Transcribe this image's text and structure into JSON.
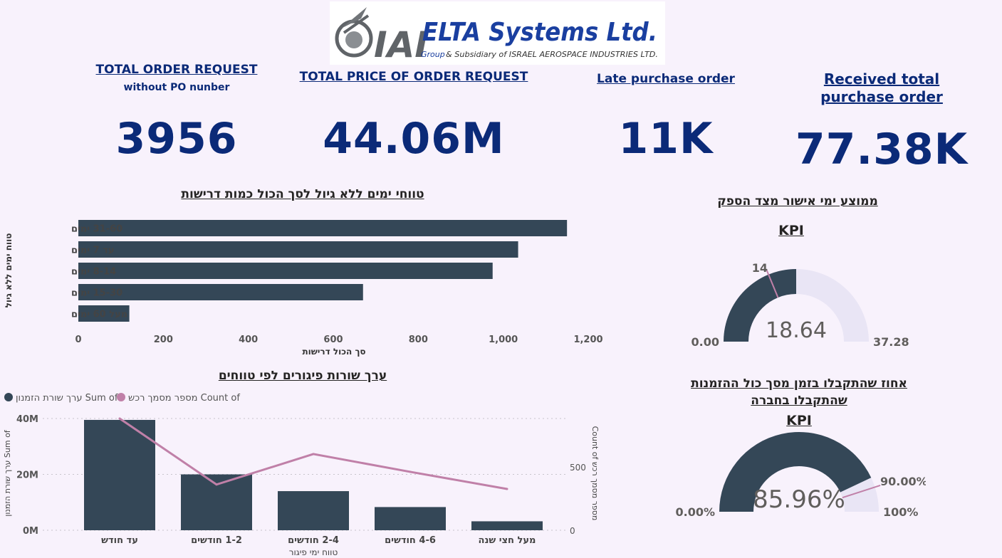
{
  "logo": {
    "brand": "IAI",
    "company": "ELTA Systems Ltd.",
    "tagline_group": "Group",
    "tagline_rest": "& Subsidiary of ISRAEL AEROSPACE INDUSTRIES LTD."
  },
  "kpis": [
    {
      "title": "TOTAL ORDER REQUEST",
      "subtitle": "without PO nunber",
      "value": "3956"
    },
    {
      "title": "TOTAL PRICE OF ORDER REQUEST",
      "subtitle": "",
      "value": "44.06M"
    },
    {
      "title": "Late purchase order",
      "subtitle": "",
      "value": "11K"
    },
    {
      "title": "Received total purchase order",
      "subtitle": "",
      "value": "77.38K"
    }
  ],
  "colors": {
    "bar": "#344757",
    "line": "#c080a8",
    "gauge_track": "#e9e5f5",
    "kpi_blue": "#0b2a78",
    "background": "#f8f2fc"
  },
  "chart_data": [
    {
      "type": "bar",
      "orientation": "horizontal",
      "title": "טווחי ימים ללא גיול לסך הכול כמות דרישות",
      "xlabel": "סך הכול דרישות",
      "ylabel": "טווח ימים ללא גיול",
      "categories": [
        "31-60 ימים",
        "עד 7 ימים",
        "8-14 ימים",
        "15-30 ימים",
        "מעל 60 ימים"
      ],
      "values": [
        1150,
        1035,
        975,
        670,
        120
      ],
      "xlim": [
        0,
        1200
      ],
      "xticks": [
        "0",
        "200",
        "400",
        "600",
        "800",
        "1,000",
        "1,200"
      ],
      "grid": false
    },
    {
      "type": "bar",
      "combo": "bar+line",
      "title": "ערך שורות פיגורים לפי טווחים",
      "xlabel": "טווח ימי פיגור",
      "ylabel_left": "ערך שורת הזמנון Sum of",
      "ylabel_right": "Count of מספר מסמך רכש",
      "legend": [
        "ערך שורת הזמנון Sum of",
        "מספר מסמך רכש Count of"
      ],
      "legend_position": "top-left",
      "categories": [
        "עד חודש",
        "1-2 חודשים",
        "2-4 חודשים",
        "4-6 חודשים",
        "מעל חצי שנה"
      ],
      "series": [
        {
          "name": "ערך שורת הזמנון Sum of",
          "axis": "left",
          "values": [
            39500000,
            20000000,
            14000000,
            8300000,
            3200000
          ]
        },
        {
          "name": "מספר מסמך רכש Count of",
          "axis": "right",
          "values": [
            880,
            360,
            600,
            460,
            325
          ]
        }
      ],
      "ylim_left": [
        0,
        40000000
      ],
      "yticks_left": [
        "0M",
        "20M",
        "40M"
      ],
      "ylim_right": [
        0,
        880
      ],
      "yticks_right": [
        "0",
        "500"
      ],
      "grid": true
    },
    {
      "type": "gauge",
      "title": "ממוצע ימי אישור מצד הספק",
      "subtitle": "KPI",
      "value": 18.64,
      "value_label": "18.64",
      "min": 0,
      "max": 37.28,
      "min_label": "0.00",
      "max_label": "37.28",
      "target": 14,
      "target_label": "14"
    },
    {
      "type": "gauge",
      "title": "אחוז שהתקבלו בזמן מסך כול ההזמנות שהתקבלו בחברה",
      "subtitle": "KPI",
      "value": 85.96,
      "value_label": "85.96%",
      "min": 0,
      "max": 100,
      "min_label": "0.00%",
      "max_label": "100%",
      "target": 90,
      "target_label": "90.00%"
    }
  ]
}
